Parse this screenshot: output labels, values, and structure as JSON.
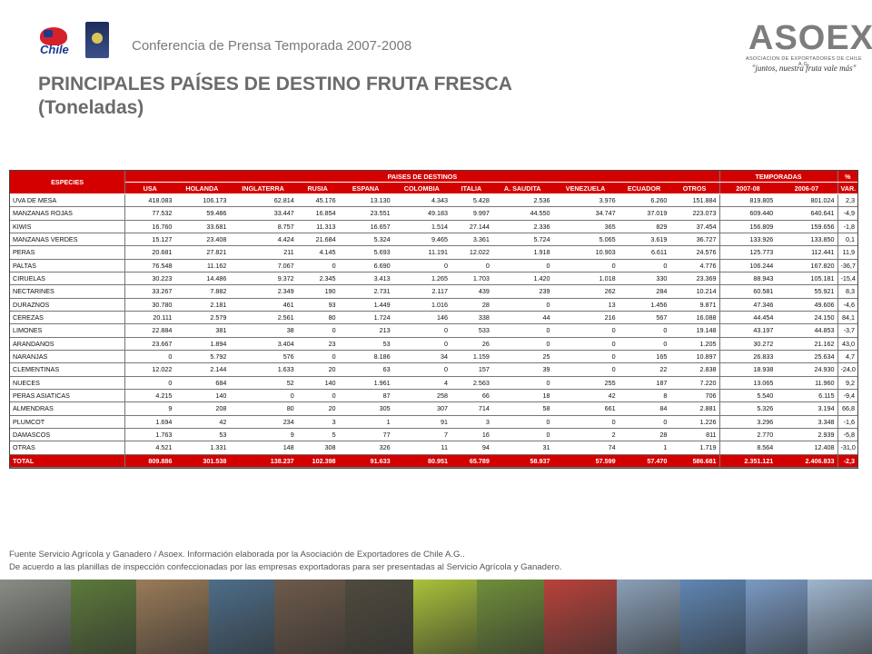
{
  "header": {
    "conference_title": "Conferencia de Prensa Temporada 2007-2008",
    "chile_logo_text": "Chile",
    "asoex_logo": {
      "name": "ASOEX",
      "subtitle": "ASOCIACION DE EXPORTADORES DE CHILE A.G.",
      "slogan": "\"juntos, nuestra fruta vale más\""
    }
  },
  "title": {
    "line1": "PRINCIPALES PAÍSES DE DESTINO FRUTA FRESCA",
    "line2": "(Toneladas)"
  },
  "table": {
    "species_header": "ESPECIES",
    "group_headers": {
      "destinations": "PAISES DE DESTINOS",
      "seasons": "TEMPORADAS",
      "percent": "%"
    },
    "columns": [
      "USA",
      "HOLANDA",
      "INGLATERRA",
      "RUSIA",
      "ESPANA",
      "COLOMBIA",
      "ITALIA",
      "A. SAUDITA",
      "VENEZUELA",
      "ECUADOR",
      "OTROS",
      "2007-08",
      "2006-07",
      "VAR."
    ],
    "rows": [
      {
        "species": "UVA DE MESA",
        "values": [
          "418.083",
          "106.173",
          "62.814",
          "45.176",
          "13.130",
          "4.343",
          "5.428",
          "2.536",
          "3.976",
          "6.260",
          "151.884",
          "819.805",
          "801.024",
          "2,3"
        ]
      },
      {
        "species": "MANZANAS ROJAS",
        "values": [
          "77.532",
          "59.486",
          "33.447",
          "16.854",
          "23.551",
          "49.183",
          "9.997",
          "44.550",
          "34.747",
          "37.019",
          "223.073",
          "609.440",
          "640.641",
          "-4,9"
        ]
      },
      {
        "species": "KIWIS",
        "values": [
          "16.760",
          "33.681",
          "8.757",
          "11.313",
          "16.657",
          "1.514",
          "27.144",
          "2.336",
          "365",
          "829",
          "37.454",
          "156.809",
          "159.656",
          "-1,8"
        ]
      },
      {
        "species": "MANZANAS VERDES",
        "values": [
          "15.127",
          "23.408",
          "4.424",
          "21.684",
          "5.324",
          "9.465",
          "3.361",
          "5.724",
          "5.065",
          "3.619",
          "36.727",
          "133.926",
          "133.850",
          "0,1"
        ]
      },
      {
        "species": "PERAS",
        "values": [
          "20.681",
          "27.821",
          "211",
          "4.145",
          "5.693",
          "11.191",
          "12.022",
          "1.918",
          "10.903",
          "6.611",
          "24.576",
          "125.773",
          "112.441",
          "11,9"
        ]
      },
      {
        "species": "PALTAS",
        "values": [
          "76.548",
          "11.162",
          "7.067",
          "0",
          "6.690",
          "0",
          "0",
          "0",
          "0",
          "0",
          "4.776",
          "106.244",
          "167.820",
          "-36,7"
        ]
      },
      {
        "species": "CIRUELAS",
        "values": [
          "30.223",
          "14.486",
          "9.372",
          "2.345",
          "3.413",
          "1.265",
          "1.703",
          "1.420",
          "1.018",
          "330",
          "23.369",
          "88.943",
          "105.181",
          "-15,4"
        ]
      },
      {
        "species": "NECTARINES",
        "values": [
          "33.267",
          "7.882",
          "2.349",
          "190",
          "2.731",
          "2.117",
          "439",
          "239",
          "262",
          "284",
          "10.214",
          "60.581",
          "55.921",
          "8,3"
        ]
      },
      {
        "species": "DURAZNOS",
        "values": [
          "30.780",
          "2.181",
          "461",
          "93",
          "1.449",
          "1.016",
          "28",
          "0",
          "13",
          "1.456",
          "9.871",
          "47.346",
          "49.606",
          "-4,6"
        ]
      },
      {
        "species": "CEREZAS",
        "values": [
          "20.111",
          "2.579",
          "2.561",
          "80",
          "1.724",
          "146",
          "338",
          "44",
          "216",
          "567",
          "16.088",
          "44.454",
          "24.150",
          "84,1"
        ]
      },
      {
        "species": "LIMONES",
        "values": [
          "22.884",
          "381",
          "38",
          "0",
          "213",
          "0",
          "533",
          "0",
          "0",
          "0",
          "19.148",
          "43.197",
          "44.853",
          "-3,7"
        ]
      },
      {
        "species": "ARANDANOS",
        "values": [
          "23.667",
          "1.894",
          "3.404",
          "23",
          "53",
          "0",
          "26",
          "0",
          "0",
          "0",
          "1.205",
          "30.272",
          "21.162",
          "43,0"
        ]
      },
      {
        "species": "NARANJAS",
        "values": [
          "0",
          "5.792",
          "576",
          "0",
          "8.186",
          "34",
          "1.159",
          "25",
          "0",
          "165",
          "10.897",
          "26.833",
          "25.634",
          "4,7"
        ]
      },
      {
        "species": "CLEMENTINAS",
        "values": [
          "12.022",
          "2.144",
          "1.633",
          "20",
          "63",
          "0",
          "157",
          "39",
          "0",
          "22",
          "2.838",
          "18.938",
          "24.930",
          "-24,0"
        ]
      },
      {
        "species": "NUECES",
        "values": [
          "0",
          "684",
          "52",
          "140",
          "1.961",
          "4",
          "2.563",
          "0",
          "255",
          "187",
          "7.220",
          "13.065",
          "11.960",
          "9,2"
        ]
      },
      {
        "species": "PERAS ASIATICAS",
        "values": [
          "4.215",
          "140",
          "0",
          "0",
          "87",
          "258",
          "66",
          "18",
          "42",
          "8",
          "706",
          "5.540",
          "6.115",
          "-9,4"
        ]
      },
      {
        "species": "ALMENDRAS",
        "values": [
          "9",
          "208",
          "80",
          "20",
          "305",
          "307",
          "714",
          "58",
          "661",
          "84",
          "2.881",
          "5.326",
          "3.194",
          "66,8"
        ]
      },
      {
        "species": "PLUMCOT",
        "values": [
          "1.694",
          "42",
          "234",
          "3",
          "1",
          "91",
          "3",
          "0",
          "0",
          "0",
          "1.226",
          "3.296",
          "3.348",
          "-1,6"
        ]
      },
      {
        "species": "DAMASCOS",
        "values": [
          "1.763",
          "53",
          "9",
          "5",
          "77",
          "7",
          "16",
          "0",
          "2",
          "28",
          "811",
          "2.770",
          "2.939",
          "-5,8"
        ]
      },
      {
        "species": "OTRAS",
        "values": [
          "4.521",
          "1.331",
          "148",
          "308",
          "326",
          "11",
          "94",
          "31",
          "74",
          "1",
          "1.719",
          "8.564",
          "12.408",
          "-31,0"
        ]
      }
    ],
    "total": {
      "species": "TOTAL",
      "values": [
        "809.886",
        "301.538",
        "138.237",
        "102.398",
        "91.633",
        "80.951",
        "65.789",
        "58.937",
        "57.599",
        "57.470",
        "586.681",
        "2.351.121",
        "2.406.833",
        "-2,3"
      ]
    }
  },
  "footnote": {
    "line1": "Fuente Servicio Agrícola y Ganadero / Asoex. Información elaborada por la Asociación de Exportadores de Chile A.G..",
    "line2": "De acuerdo a las planillas de inspección confeccionadas por las empresas exportadoras  para ser presentadas al Servicio Agrícola y Ganadero."
  },
  "photo_strip_colors": [
    "#8a8d85",
    "#5c7a3a",
    "#9a7b58",
    "#4d6e8a",
    "#6e5a4a",
    "#4e4a3e",
    "#a8c23a",
    "#6f8f3a",
    "#b8423a",
    "#8aa0b8",
    "#5f86b4",
    "#7a9ac4",
    "#9fb6cf"
  ]
}
